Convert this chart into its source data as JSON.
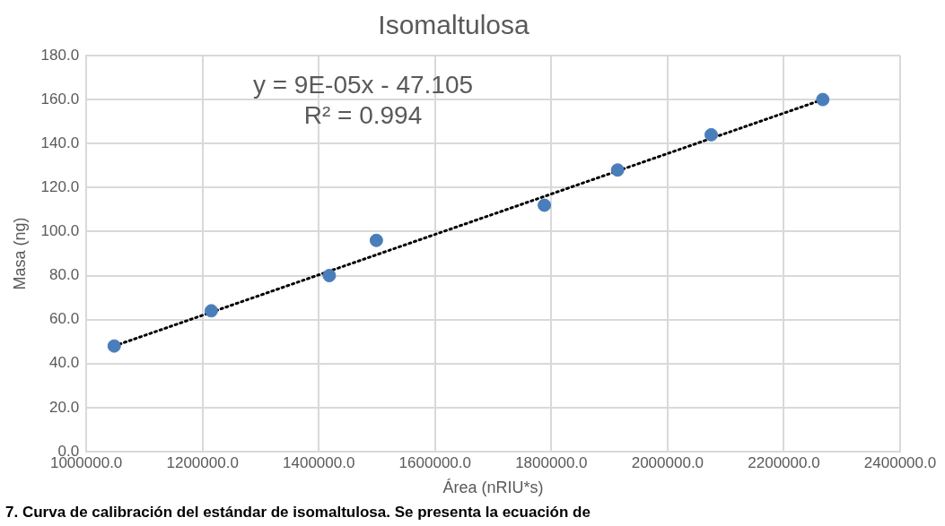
{
  "chart_data": {
    "type": "scatter",
    "title": "Isomaltulosa",
    "xlabel": "Área (nRIU*s)",
    "ylabel": "Masa (ng)",
    "x": [
      1048000,
      1215000,
      1418000,
      1499000,
      1788000,
      1914000,
      2075000,
      2267000
    ],
    "series": [
      {
        "color": "#4a7ebb",
        "values": [
          48,
          64,
          80,
          96,
          112,
          128,
          144,
          160
        ]
      },
      {
        "type": "line",
        "color": "#000000",
        "line_style": "dotted",
        "marker": "none",
        "x": [
          1048000,
          2267000
        ],
        "values": [
          48,
          160
        ]
      }
    ],
    "marker": "circle",
    "xlim": [
      1000000,
      2400000
    ],
    "xticks": [
      {
        "value": 1000000,
        "label": "1000000.0"
      },
      {
        "value": 1200000,
        "label": "1200000.0"
      },
      {
        "value": 1400000,
        "label": "1400000.0"
      },
      {
        "value": 1600000,
        "label": "1600000.0"
      },
      {
        "value": 1800000,
        "label": "1800000.0"
      },
      {
        "value": 2000000,
        "label": "2000000.0"
      },
      {
        "value": 2200000,
        "label": "2200000.0"
      },
      {
        "value": 2400000,
        "label": "2400000.0"
      }
    ],
    "ylim": [
      0,
      180
    ],
    "yticks": [
      {
        "value": 0,
        "label": "0.0"
      },
      {
        "value": 20,
        "label": "20.0"
      },
      {
        "value": 40,
        "label": "40.0"
      },
      {
        "value": 60,
        "label": "60.0"
      },
      {
        "value": 80,
        "label": "80.0"
      },
      {
        "value": 100,
        "label": "100.0"
      },
      {
        "value": 120,
        "label": "120.0"
      },
      {
        "value": 140,
        "label": "140.0"
      },
      {
        "value": 160,
        "label": "160.0"
      },
      {
        "value": 180,
        "label": "180.0"
      }
    ],
    "grid": true,
    "legend": false,
    "annotations": [
      "y = 9E-05x - 47.105",
      "R² = 0.994",
      "7. Curva de calibración del estándar de isomaltulosa. Se presenta la ecuación de"
    ]
  }
}
